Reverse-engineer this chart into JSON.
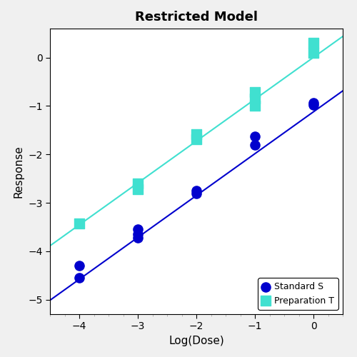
{
  "title": "Restricted Model",
  "xlabel": "Log(Dose)",
  "ylabel": "Response",
  "xlim": [
    -4.5,
    0.5
  ],
  "ylim": [
    -5.3,
    0.6
  ],
  "xticks": [
    -4,
    -3,
    -2,
    -1,
    0
  ],
  "yticks": [
    -5,
    -4,
    -3,
    -2,
    -1,
    0
  ],
  "standard_S": {
    "x": [
      -4,
      -4,
      -3,
      -3,
      -3,
      -2,
      -2,
      -1,
      -1,
      0,
      0
    ],
    "y": [
      -4.3,
      -4.55,
      -3.55,
      -3.65,
      -3.72,
      -2.75,
      -2.8,
      -1.62,
      -1.8,
      -0.93,
      -0.98
    ],
    "color": "#0000CD",
    "marker": "o",
    "markersize": 6,
    "label": "Standard S"
  },
  "preparation_T": {
    "x": [
      -4,
      -3,
      -3,
      -2,
      -2,
      -1,
      -1,
      -1,
      0,
      0
    ],
    "y": [
      -3.42,
      -2.6,
      -2.72,
      -1.58,
      -1.68,
      -0.72,
      -0.85,
      -1.0,
      0.1,
      0.3
    ],
    "color": "#3CB371",
    "marker": "s",
    "markersize": 6,
    "label": "Preparation T"
  },
  "line_S": {
    "slope": 0.865,
    "intercept": -1.12,
    "color": "#0000CD",
    "linewidth": 1.5
  },
  "line_T": {
    "slope": 0.865,
    "intercept": 0.005,
    "color": "#40E0D0",
    "linewidth": 1.5
  },
  "outer_bg_color": "#f0f0f0",
  "plot_bg_color": "#ffffff",
  "title_fontsize": 13,
  "axis_fontsize": 11,
  "tick_fontsize": 10,
  "legend_loc": "lower right",
  "figsize": [
    5.0,
    5.0
  ],
  "dpi": 100
}
